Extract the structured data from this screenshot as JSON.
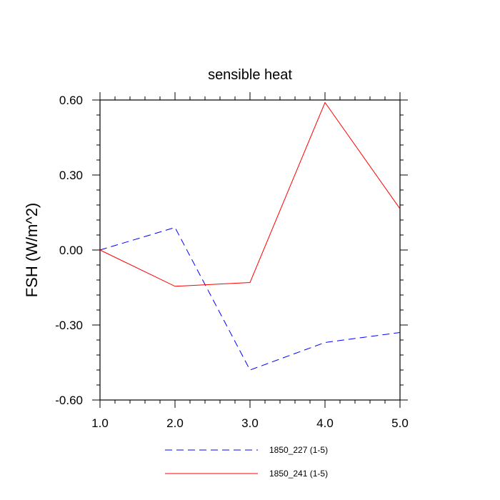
{
  "chart_data": {
    "type": "line",
    "title": "sensible heat",
    "xlabel": "",
    "ylabel": "FSH  (W/m^2)",
    "xlim": [
      1.0,
      5.0
    ],
    "ylim": [
      -0.6,
      0.6
    ],
    "x_ticks": [
      "1.0",
      "2.0",
      "3.0",
      "4.0",
      "5.0"
    ],
    "y_ticks": [
      "0.60",
      "0.30",
      "0.00",
      "-0.30",
      "-0.60"
    ],
    "grid": false,
    "legend_position": "bottom",
    "x": [
      1.0,
      2.0,
      3.0,
      4.0,
      5.0
    ],
    "series": [
      {
        "name": "1850_227 (1-5)",
        "values": [
          0.0,
          0.09,
          -0.48,
          -0.37,
          -0.33
        ],
        "color": "#0000ff",
        "dash": "dashed"
      },
      {
        "name": "1850_241 (1-5)",
        "values": [
          0.0,
          -0.145,
          -0.13,
          0.59,
          0.165
        ],
        "color": "#ff0000",
        "dash": "solid"
      }
    ]
  }
}
